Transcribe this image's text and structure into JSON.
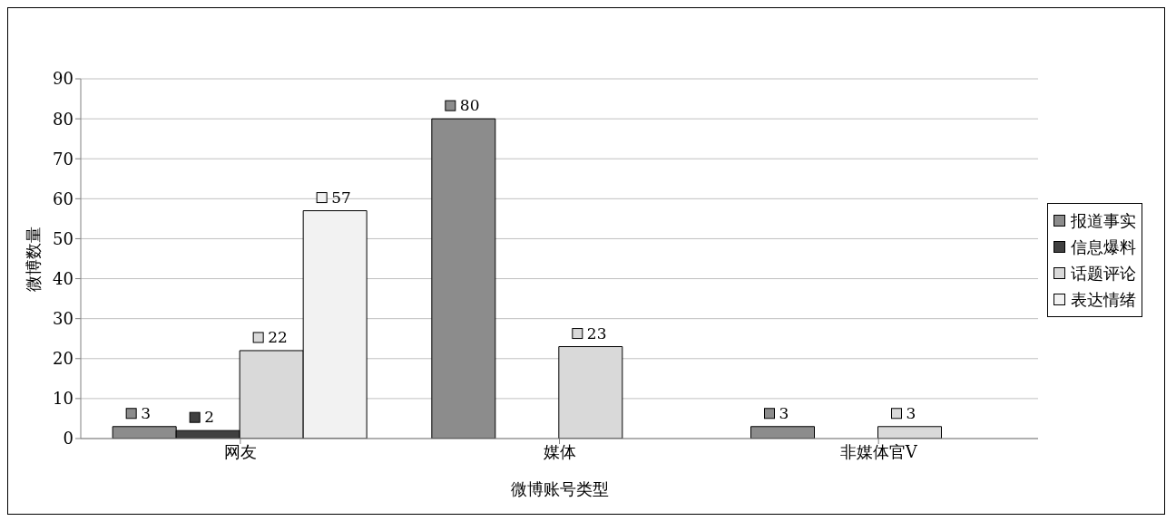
{
  "chart_data": {
    "type": "bar",
    "xlabel": "微博账号类型",
    "ylabel": "微博数量",
    "categories": [
      "网友",
      "媒体",
      "非媒体官V"
    ],
    "series": [
      {
        "name": "报道事实",
        "color": "#8c8c8c",
        "values": [
          3,
          80,
          3
        ]
      },
      {
        "name": "信息爆料",
        "color": "#404040",
        "values": [
          2,
          null,
          null
        ]
      },
      {
        "name": "话题评论",
        "color": "#d9d9d9",
        "values": [
          22,
          23,
          3
        ]
      },
      {
        "name": "表达情绪",
        "color": "#f2f2f2",
        "values": [
          57,
          null,
          null
        ]
      }
    ],
    "ylim": [
      0,
      90
    ],
    "yticks": [
      0,
      10,
      20,
      30,
      40,
      50,
      60,
      70,
      80,
      90
    ],
    "grid": "y",
    "legend": "right",
    "data_labels": true
  }
}
